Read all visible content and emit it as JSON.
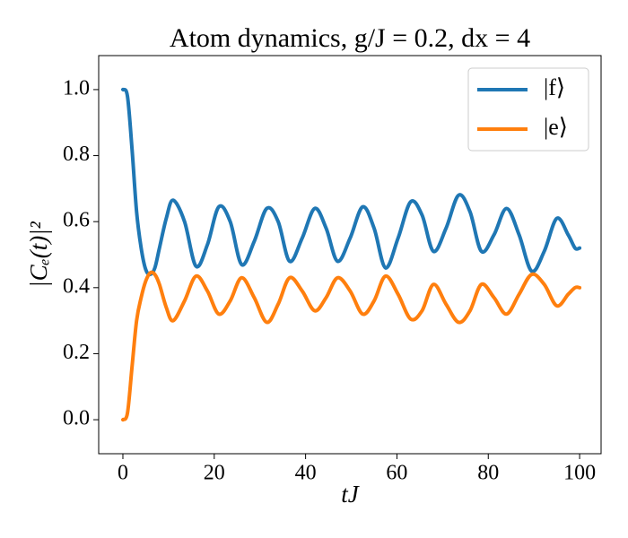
{
  "chart_data": {
    "type": "line",
    "title": "Atom dynamics, g/J = 0.2, dx = 4",
    "x_label": "tJ",
    "y_label": "|Cₑ(t)|²",
    "x": [
      0,
      1,
      2,
      3,
      4,
      5,
      6,
      7,
      8,
      9.5,
      11,
      13.5,
      16,
      18.5,
      21,
      23.5,
      26,
      28.75,
      31.5,
      34,
      36.5,
      39.25,
      42,
      44.5,
      47,
      49.75,
      52.5,
      55,
      57.5,
      60.25,
      63,
      65.5,
      68,
      70.75,
      73.5,
      76,
      78.5,
      81.25,
      84,
      86.75,
      89.5,
      92.25,
      95,
      97.5,
      99,
      100
    ],
    "series": [
      {
        "name": "|f⟩",
        "color": "#1f77b4",
        "values": [
          1.0,
          0.98,
          0.82,
          0.63,
          0.52,
          0.455,
          0.44,
          0.46,
          0.52,
          0.61,
          0.665,
          0.6,
          0.465,
          0.53,
          0.645,
          0.6,
          0.47,
          0.54,
          0.64,
          0.6,
          0.48,
          0.55,
          0.64,
          0.58,
          0.48,
          0.55,
          0.645,
          0.58,
          0.46,
          0.55,
          0.66,
          0.62,
          0.51,
          0.58,
          0.68,
          0.63,
          0.51,
          0.56,
          0.64,
          0.56,
          0.45,
          0.51,
          0.61,
          0.56,
          0.52,
          0.52
        ]
      },
      {
        "name": "|e⟩",
        "color": "#ff7f0e",
        "values": [
          0,
          0.02,
          0.16,
          0.3,
          0.37,
          0.42,
          0.445,
          0.44,
          0.41,
          0.34,
          0.3,
          0.36,
          0.435,
          0.39,
          0.32,
          0.36,
          0.43,
          0.37,
          0.295,
          0.35,
          0.43,
          0.39,
          0.33,
          0.37,
          0.43,
          0.39,
          0.32,
          0.36,
          0.435,
          0.38,
          0.305,
          0.33,
          0.41,
          0.35,
          0.295,
          0.33,
          0.41,
          0.37,
          0.32,
          0.38,
          0.44,
          0.41,
          0.345,
          0.38,
          0.4,
          0.4
        ]
      }
    ],
    "xlim": [
      -5.3,
      104.7
    ],
    "ylim": [
      -0.103,
      1.103
    ],
    "xticks": [
      0,
      20,
      40,
      60,
      80,
      100
    ],
    "yticks": [
      {
        "value": 0,
        "label": "0.0"
      },
      0.2,
      0.4,
      0.6,
      0.8,
      {
        "value": 1,
        "label": "1.0"
      }
    ],
    "legend": "upper right",
    "grid": false
  }
}
